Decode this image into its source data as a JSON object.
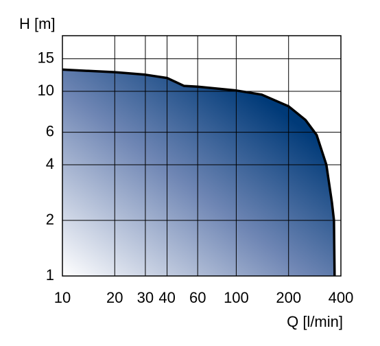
{
  "chart_data": {
    "type": "line",
    "y_label": "H [m]",
    "x_label": "Q [l/min]",
    "log_x": true,
    "log_y": true,
    "grid": true,
    "color": "#003a78",
    "x": [
      10,
      20,
      30,
      40,
      50,
      60,
      100,
      140,
      200,
      250,
      290,
      330,
      355,
      365,
      368
    ],
    "values": [
      13.1,
      12.7,
      12.3,
      11.8,
      10.7,
      10.6,
      10.1,
      9.6,
      8.3,
      7,
      5.8,
      4,
      2.5,
      2,
      1
    ],
    "xlim": [
      10,
      400
    ],
    "ylim": [
      1,
      20
    ],
    "xticks": [
      10,
      20,
      30,
      40,
      60,
      100,
      200,
      400
    ],
    "yticks": [
      1,
      2,
      4,
      6,
      10,
      15
    ]
  }
}
